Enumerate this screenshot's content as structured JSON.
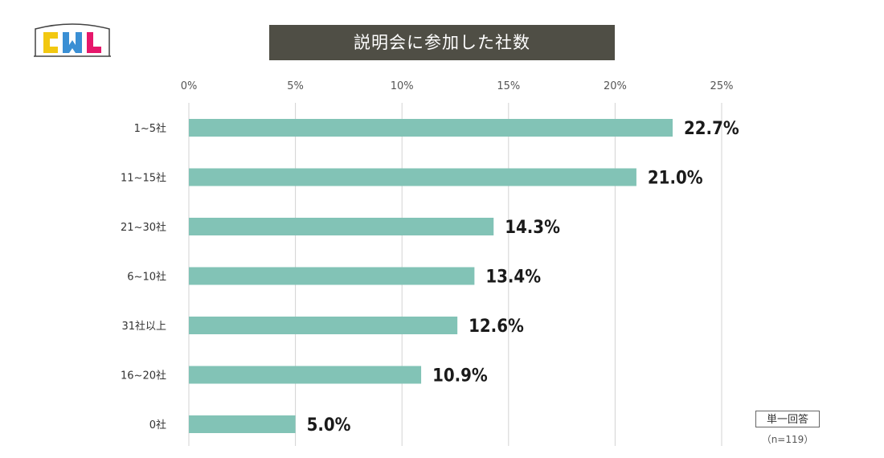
{
  "logo": {
    "text": "CWL",
    "colors": [
      "#f2c811",
      "#3a8fd4",
      "#e6176b"
    ]
  },
  "chart_data": {
    "type": "bar",
    "orientation": "horizontal",
    "title": "説明会に参加した社数",
    "categories": [
      "1~5社",
      "11~15社",
      "21~30社",
      "6~10社",
      "31社以上",
      "16~20社",
      "0社"
    ],
    "values": [
      22.7,
      21.0,
      14.3,
      13.4,
      12.6,
      10.9,
      5.0
    ],
    "value_labels": [
      "22.7%",
      "21.0%",
      "14.3%",
      "13.4%",
      "12.6%",
      "10.9%",
      "5.0%"
    ],
    "xlim": [
      0,
      25
    ],
    "xticks": [
      0,
      5,
      10,
      15,
      20,
      25
    ],
    "xtick_labels": [
      "0%",
      "5%",
      "10%",
      "15%",
      "20%",
      "25%"
    ],
    "grid": true,
    "bar_color": "#82c3b6"
  },
  "notes": {
    "answer_type": "単一回答",
    "sample": "（n=119）"
  }
}
